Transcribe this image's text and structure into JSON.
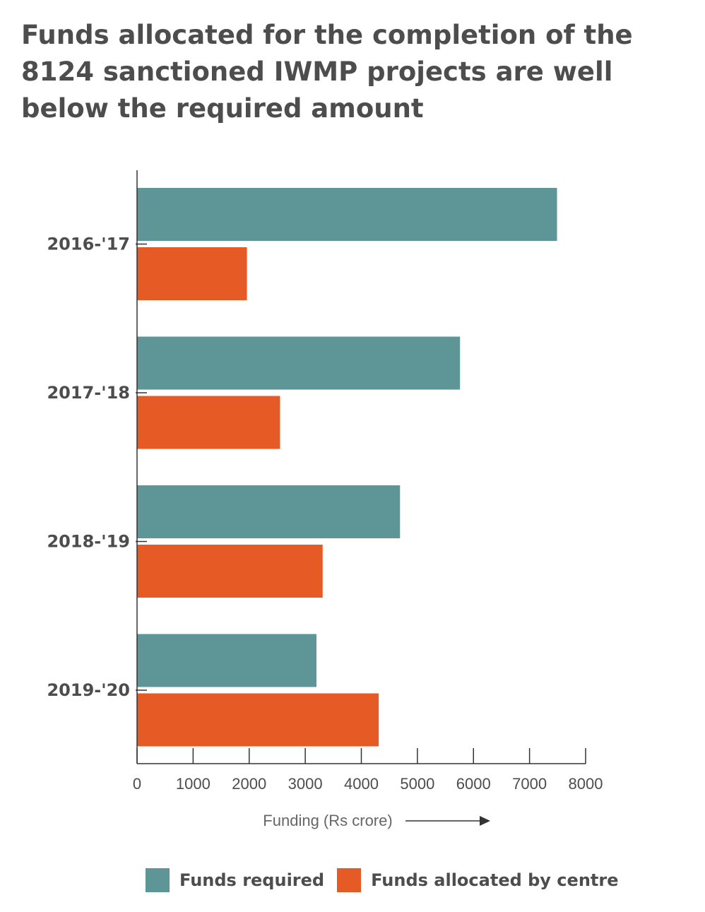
{
  "title_lines": [
    "Funds allocated for the completion of the",
    "8124 sanctioned IWMP projects are well",
    "below the required amount"
  ],
  "colors": {
    "required": "#5e9597",
    "allocated": "#e55a25",
    "axis": "#333333",
    "text": "#4d4d4d"
  },
  "legend": [
    {
      "label": "Funds required",
      "color": "#5e9597"
    },
    {
      "label": "Funds allocated by centre",
      "color": "#e55a25"
    }
  ],
  "chart_data": {
    "type": "bar",
    "orientation": "horizontal",
    "title": "Funds allocated for the completion of the 8124 sanctioned IWMP projects are well below the required amount",
    "categories": [
      "2016-'17",
      "2017-'18",
      "2018-'19",
      "2019-'20"
    ],
    "series": [
      {
        "name": "Funds required",
        "values": [
          7490,
          5760,
          4690,
          3200
        ]
      },
      {
        "name": "Funds allocated by centre",
        "values": [
          1960,
          2550,
          3310,
          4310
        ]
      }
    ],
    "xlabel": "Funding (Rs crore)",
    "ylabel": "",
    "xlim": [
      0,
      8000
    ],
    "xticks": [
      "0",
      "1000",
      "2000",
      "3000",
      "4000",
      "5000",
      "6000",
      "7000",
      "8000"
    ],
    "grid": false,
    "legend_position": "bottom"
  }
}
